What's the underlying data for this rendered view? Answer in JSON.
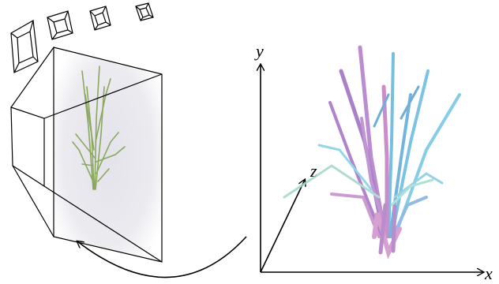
{
  "axes": {
    "y": "y",
    "z": "z",
    "x": "x"
  }
}
